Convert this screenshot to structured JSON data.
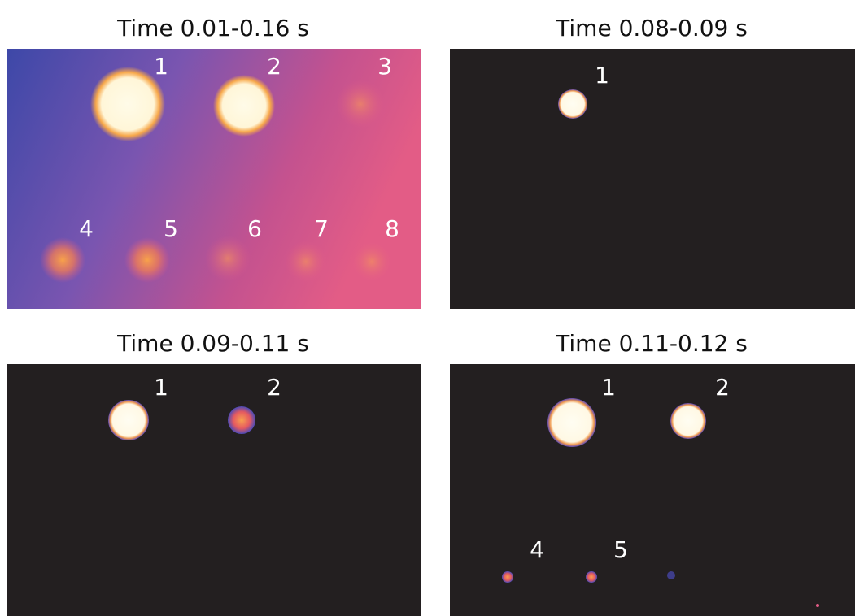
{
  "panels": [
    {
      "title": "Time 0.01-0.16 s",
      "labels": [
        "1",
        "2",
        "3",
        "4",
        "5",
        "6",
        "7",
        "8"
      ]
    },
    {
      "title": "Time 0.08-0.09 s",
      "labels": [
        "1"
      ]
    },
    {
      "title": "Time 0.09-0.11 s",
      "labels": [
        "1",
        "2"
      ]
    },
    {
      "title": "Time 0.11-0.12 s",
      "labels": [
        "1",
        "2",
        "4",
        "5"
      ]
    }
  ]
}
